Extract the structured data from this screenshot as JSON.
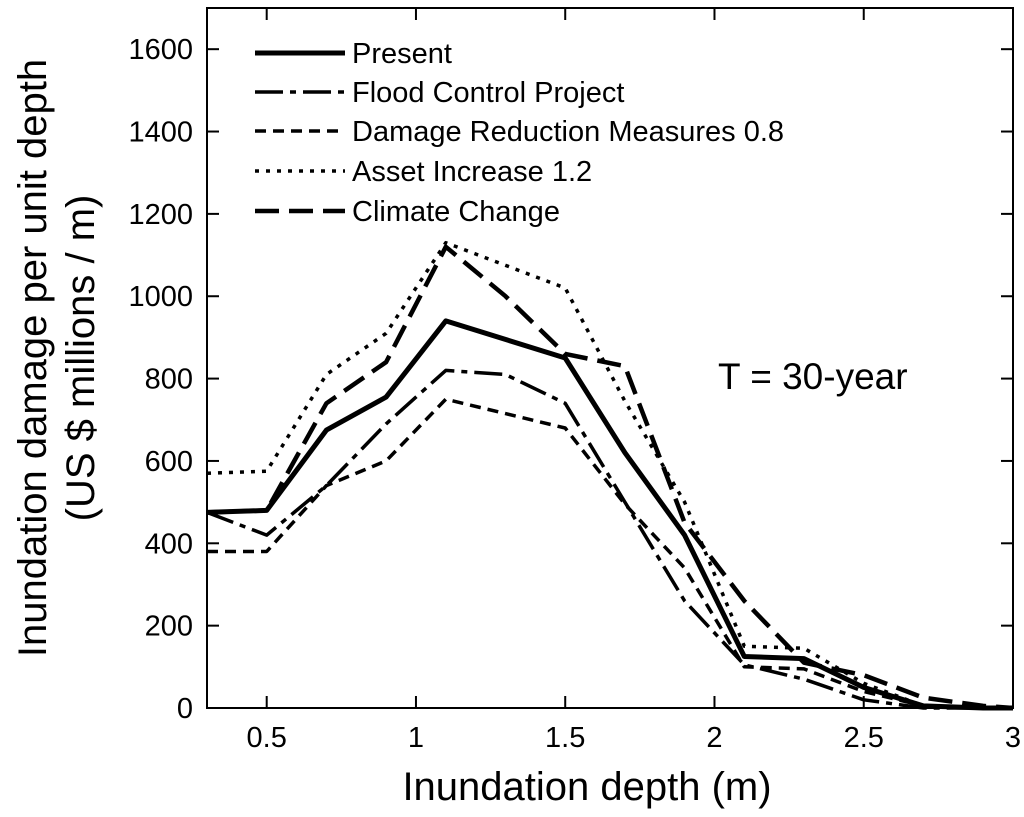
{
  "chart_data": {
    "type": "line",
    "xlabel": "Inundation depth (m)",
    "ylabel_line1": "Inundation damage per unit depth",
    "ylabel_line2": "(US $ millions / m)",
    "xlim": [
      0.3,
      3.0
    ],
    "ylim": [
      0,
      1700
    ],
    "xticks": [
      0.5,
      1.0,
      1.5,
      2.0,
      2.5,
      3.0
    ],
    "xtick_labels": [
      "0.5",
      "1",
      "1.5",
      "2",
      "2.5",
      "3"
    ],
    "yticks": [
      0,
      200,
      400,
      600,
      800,
      1000,
      1200,
      1400,
      1600
    ],
    "ytick_labels": [
      "0",
      "200",
      "400",
      "600",
      "800",
      "1000",
      "1200",
      "1400",
      "1600"
    ],
    "annotation": "T = 30-year",
    "legend_position": "top-left",
    "series": [
      {
        "name": "Present",
        "style": "solid",
        "x": [
          0.3,
          0.5,
          0.7,
          0.9,
          1.1,
          1.5,
          1.7,
          1.9,
          2.1,
          2.3,
          2.5,
          2.7,
          2.9,
          3.0
        ],
        "y": [
          475,
          480,
          675,
          755,
          940,
          850,
          620,
          420,
          125,
          120,
          50,
          5,
          0,
          0
        ]
      },
      {
        "name": "Flood Control Project",
        "style": "longdashdot",
        "x": [
          0.3,
          0.5,
          0.7,
          0.9,
          1.1,
          1.3,
          1.5,
          1.7,
          1.9,
          2.1,
          2.3,
          2.5,
          2.7,
          2.9,
          3.0
        ],
        "y": [
          475,
          420,
          540,
          690,
          820,
          810,
          740,
          500,
          260,
          105,
          70,
          20,
          0,
          0,
          0
        ]
      },
      {
        "name": "Damage Reduction Measures 0.8",
        "style": "dashed",
        "x": [
          0.3,
          0.5,
          0.7,
          0.9,
          1.1,
          1.5,
          1.7,
          1.9,
          2.1,
          2.3,
          2.5,
          2.7,
          2.9,
          3.0
        ],
        "y": [
          380,
          380,
          540,
          600,
          750,
          680,
          495,
          340,
          100,
          95,
          40,
          5,
          0,
          0
        ]
      },
      {
        "name": "Asset Increase 1.2",
        "style": "dotted",
        "x": [
          0.3,
          0.5,
          0.7,
          0.9,
          1.1,
          1.5,
          1.7,
          1.9,
          2.1,
          2.3,
          2.5,
          2.7,
          2.9,
          3.0
        ],
        "y": [
          570,
          575,
          810,
          910,
          1130,
          1020,
          745,
          500,
          150,
          145,
          60,
          5,
          0,
          0
        ]
      },
      {
        "name": "Climate Change",
        "style": "longdash",
        "x": [
          0.3,
          0.5,
          0.7,
          0.9,
          1.1,
          1.3,
          1.5,
          1.7,
          1.9,
          2.1,
          2.3,
          2.5,
          2.7,
          2.9,
          3.0
        ],
        "y": [
          475,
          480,
          740,
          840,
          1120,
          1000,
          860,
          830,
          450,
          260,
          110,
          80,
          25,
          5,
          0
        ]
      }
    ]
  }
}
